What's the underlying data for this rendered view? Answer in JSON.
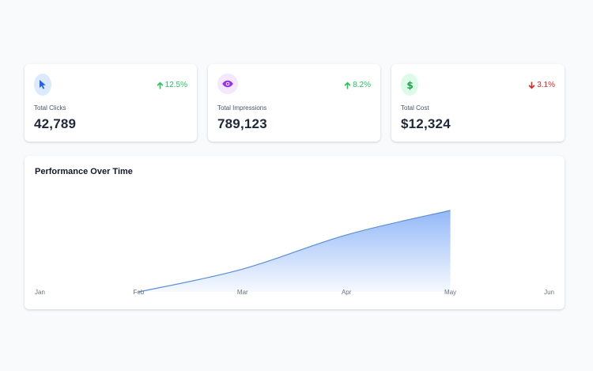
{
  "stats": [
    {
      "label": "Total Clicks",
      "value": "42,789",
      "trend": "12.5%",
      "trend_direction": "up",
      "icon": "cursor-icon",
      "icon_color": "#2563eb",
      "badge_color": "#dbeafe",
      "trend_color": "#22c55e"
    },
    {
      "label": "Total Impressions",
      "value": "789,123",
      "trend": "8.2%",
      "trend_direction": "up",
      "icon": "eye-icon",
      "icon_color": "#9333ea",
      "badge_color": "#f3e8ff",
      "trend_color": "#22c55e"
    },
    {
      "label": "Total Cost",
      "value": "$12,324",
      "trend": "3.1%",
      "trend_direction": "down",
      "icon": "dollar-icon",
      "icon_color": "#16a34a",
      "badge_color": "#dcfce7",
      "trend_color": "#dc2626"
    }
  ],
  "chart": {
    "title": "Performance Over Time"
  },
  "chart_data": {
    "type": "area",
    "title": "Performance Over Time",
    "categories": [
      "Jan",
      "Feb",
      "Mar",
      "Apr",
      "May",
      "Jun"
    ],
    "values": [
      null,
      0,
      28,
      70,
      100,
      null
    ],
    "ylim": [
      0,
      100
    ],
    "grid": false,
    "legend": "none",
    "line_color": "#5b8fd8",
    "fill_top_color": "#93b8f7"
  }
}
